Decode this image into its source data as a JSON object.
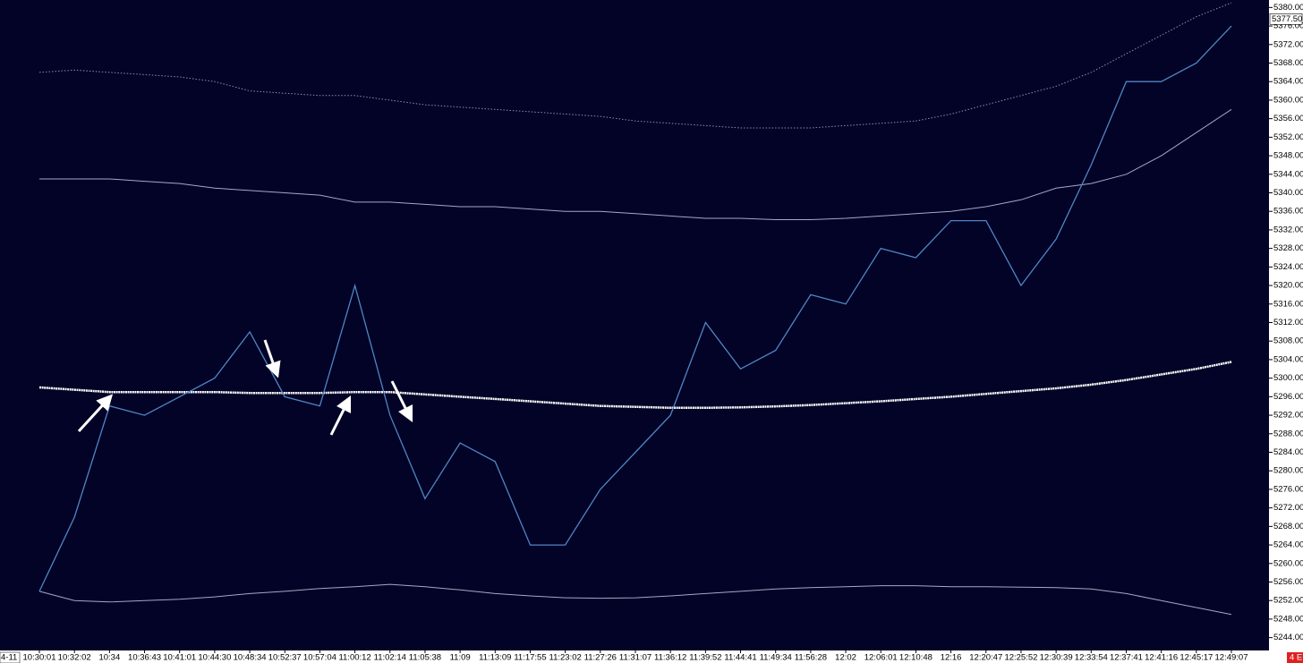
{
  "chart_data": {
    "type": "line",
    "categories": [
      "10:30:01",
      "10:32:02",
      "10:34",
      "10:36:43",
      "10:41:01",
      "10:44:30",
      "10:48:34",
      "10:52:37",
      "10:57:04",
      "11:00:12",
      "11:02:14",
      "11:05:38",
      "11:09",
      "11:13:09",
      "11:17:55",
      "11:23:02",
      "11:27:26",
      "11:31:07",
      "11:36:12",
      "11:39:52",
      "11:44:41",
      "11:49:34",
      "11:56:28",
      "12:02",
      "12:06:01",
      "12:10:48",
      "12:16",
      "12:20:47",
      "12:25:52",
      "12:30:39",
      "12:33:54",
      "12:37:41",
      "12:41:16",
      "12:45:17",
      "12:49:07"
    ],
    "series": [
      {
        "color": "#8a8fb0",
        "style": "dotted",
        "values": [
          5366,
          5366.5,
          5366,
          5365.5,
          5365,
          5364,
          5362,
          5361.5,
          5361,
          5361,
          5360,
          5359,
          5358.5,
          5358,
          5357.5,
          5357,
          5356.5,
          5355.5,
          5355,
          5354.5,
          5354,
          5354,
          5354,
          5354.5,
          5355,
          5355.5,
          5357,
          5359,
          5361,
          5363,
          5366,
          5370,
          5374,
          5378,
          5381
        ]
      },
      {
        "color": "#a4a8c8",
        "style": "solid",
        "values": [
          5343,
          5343,
          5343,
          5342.5,
          5342,
          5341,
          5340.5,
          5340,
          5339.5,
          5338,
          5338,
          5337.5,
          5337,
          5337,
          5336.5,
          5336,
          5336,
          5335.5,
          5335,
          5334.5,
          5334.5,
          5334.2,
          5334.2,
          5334.5,
          5335,
          5335.5,
          5336,
          5337,
          5338.5,
          5341,
          5342,
          5344,
          5348,
          5353,
          5358
        ]
      },
      {
        "color": "#ffffff",
        "style": "thick",
        "values": [
          5298,
          5297.5,
          5297,
          5297,
          5297,
          5297,
          5296.8,
          5296.8,
          5296.8,
          5297,
          5297,
          5296.5,
          5296,
          5295.5,
          5295,
          5294.5,
          5294,
          5293.8,
          5293.6,
          5293.6,
          5293.7,
          5293.9,
          5294.2,
          5294.6,
          5295,
          5295.5,
          5296,
          5296.6,
          5297.2,
          5297.8,
          5298.6,
          5299.6,
          5300.8,
          5302,
          5303.5
        ]
      },
      {
        "color": "#a4a8c8",
        "style": "solid",
        "values": [
          5254,
          5252,
          5251.7,
          5252,
          5252.3,
          5252.8,
          5253.5,
          5254,
          5254.6,
          5255,
          5255.5,
          5255,
          5254.3,
          5253.5,
          5253,
          5252.6,
          5252.5,
          5252.6,
          5253,
          5253.5,
          5254,
          5254.5,
          5254.8,
          5255,
          5255.2,
          5255.2,
          5255,
          5255,
          5254.9,
          5254.8,
          5254.5,
          5253.5,
          5252,
          5250.5,
          5249
        ]
      },
      {
        "color": "#4f86c6",
        "style": "price",
        "values": [
          5254,
          5270,
          5294,
          5292,
          5296,
          5300,
          5310,
          5296,
          5294,
          5320,
          5292,
          5274,
          5286,
          5282,
          5264,
          5264,
          5276,
          5284,
          5292,
          5312,
          5302,
          5306,
          5318,
          5316,
          5328,
          5326,
          5334,
          5334,
          5320,
          5330,
          5346,
          5364,
          5364,
          5368,
          5376
        ]
      }
    ],
    "ylim": [
      5242,
      5382
    ],
    "yticks": [
      {
        "value": 5244,
        "label": "5244.00"
      },
      {
        "value": 5248,
        "label": "5248.00"
      },
      {
        "value": 5252,
        "label": "5252.00"
      },
      {
        "value": 5256,
        "label": "5256.00"
      },
      {
        "value": 5260,
        "label": "5260.00"
      },
      {
        "value": 5264,
        "label": "5264.00"
      },
      {
        "value": 5268,
        "label": "5268.00"
      },
      {
        "value": 5272,
        "label": "5272.00"
      },
      {
        "value": 5276,
        "label": "5276.00"
      },
      {
        "value": 5280,
        "label": "5280.00"
      },
      {
        "value": 5284,
        "label": "5284.00"
      },
      {
        "value": 5288,
        "label": "5288.00"
      },
      {
        "value": 5292,
        "label": "5292.00"
      },
      {
        "value": 5296,
        "label": "5296.00"
      },
      {
        "value": 5300,
        "label": "5300.00"
      },
      {
        "value": 5304,
        "label": "5304.00"
      },
      {
        "value": 5308,
        "label": "5308.00"
      },
      {
        "value": 5312,
        "label": "5312.00"
      },
      {
        "value": 5316,
        "label": "5316.00"
      },
      {
        "value": 5320,
        "label": "5320.00"
      },
      {
        "value": 5324,
        "label": "5324.00"
      },
      {
        "value": 5328,
        "label": "5328.00"
      },
      {
        "value": 5332,
        "label": "5332.00"
      },
      {
        "value": 5336,
        "label": "5336.00"
      },
      {
        "value": 5340,
        "label": "5340.00"
      },
      {
        "value": 5344,
        "label": "5344.00"
      },
      {
        "value": 5348,
        "label": "5348.00"
      },
      {
        "value": 5352,
        "label": "5352.00"
      },
      {
        "value": 5356,
        "label": "5356.00"
      },
      {
        "value": 5360,
        "label": "5360.00"
      },
      {
        "value": 5364,
        "label": "5364.00"
      },
      {
        "value": 5368,
        "label": "5368.00"
      },
      {
        "value": 5372,
        "label": "5372.00"
      },
      {
        "value": 5376,
        "label": "5376.00"
      },
      {
        "value": 5380,
        "label": "5380.00"
      }
    ],
    "last_price": {
      "value": 5377.5,
      "label": "5377.50"
    },
    "date_label": "4-11",
    "corner_badge": "4 E"
  }
}
